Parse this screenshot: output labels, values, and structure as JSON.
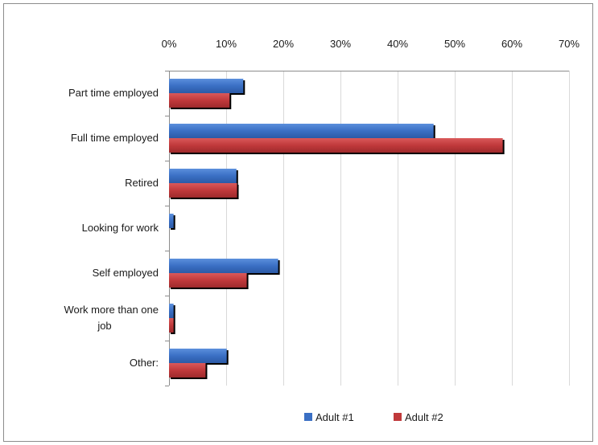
{
  "chart_data": {
    "type": "bar",
    "orientation": "horizontal",
    "categories": [
      "Part time employed",
      "Full time employed",
      "Retired",
      "Looking for work",
      "Self employed",
      "Work more than one job",
      "Other:"
    ],
    "category_lines": [
      [
        "Part time employed"
      ],
      [
        "Full time employed"
      ],
      [
        "Retired"
      ],
      [
        "Looking for work"
      ],
      [
        "Self employed"
      ],
      [
        "Work more than one",
        "job"
      ],
      [
        "Other:"
      ]
    ],
    "series": [
      {
        "name": "Adult #1",
        "color": "#3a6fc4",
        "values": [
          13.0,
          46.3,
          11.8,
          0.8,
          19.1,
          0.8,
          10.1
        ]
      },
      {
        "name": "Adult #2",
        "color": "#c0393b",
        "values": [
          10.6,
          58.4,
          11.9,
          0,
          13.6,
          0.8,
          6.4
        ]
      }
    ],
    "xlim": [
      0,
      70
    ],
    "ticks": [
      "0%",
      "10%",
      "20%",
      "30%",
      "40%",
      "50%",
      "60%",
      "70%"
    ],
    "tick_values": [
      0,
      10,
      20,
      30,
      40,
      50,
      60,
      70
    ],
    "grid": true,
    "axis_position": "top",
    "legend_position": "bottom"
  }
}
